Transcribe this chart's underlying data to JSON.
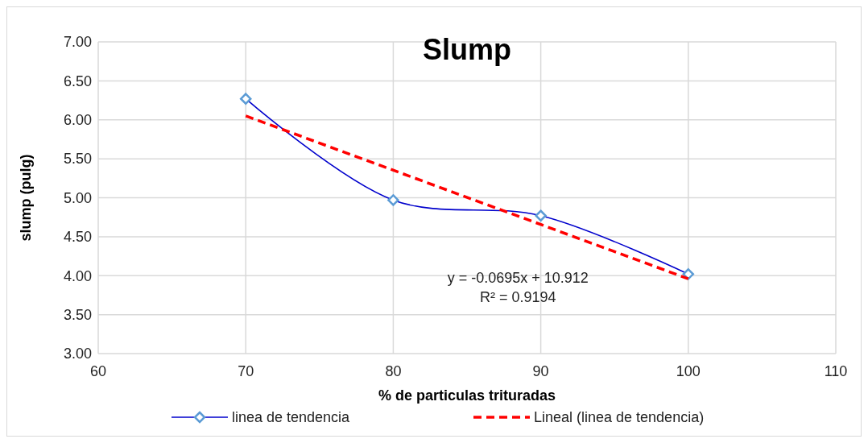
{
  "chart_data": {
    "type": "line",
    "title": "Slump",
    "xlabel": "% de particulas trituradas",
    "ylabel": "slump (pulg)",
    "xlim": [
      60,
      110
    ],
    "xticks": [
      60,
      70,
      80,
      90,
      100,
      110
    ],
    "ylim": [
      3,
      7
    ],
    "yticks": [
      {
        "value": 3,
        "label": "3.00"
      },
      {
        "value": 3.5,
        "label": "3.50"
      },
      {
        "value": 4,
        "label": "4.00"
      },
      {
        "value": 4.5,
        "label": "4.50"
      },
      {
        "value": 5,
        "label": "5.00"
      },
      {
        "value": 5.5,
        "label": "5.50"
      },
      {
        "value": 6,
        "label": "6.00"
      },
      {
        "value": 6.5,
        "label": "6.50"
      },
      {
        "value": 7,
        "label": "7.00"
      }
    ],
    "grid": true,
    "legend": "bottom",
    "series": [
      {
        "name": "linea de tendencia",
        "color": "#0000cc",
        "x": [
          70,
          80,
          90,
          100
        ],
        "values": [
          6.27,
          4.97,
          4.77,
          4.02
        ],
        "marker": "diamond",
        "line_style": "solid"
      },
      {
        "name": "Lineal (linea de tendencia)",
        "color": "#ff0000",
        "x": [
          70,
          100
        ],
        "values": [
          6.05,
          3.96
        ],
        "marker": "none",
        "line_style": "dashed"
      }
    ],
    "annotations": [
      "y = -0.0695x + 10.912",
      "R² = 0.9194"
    ]
  }
}
